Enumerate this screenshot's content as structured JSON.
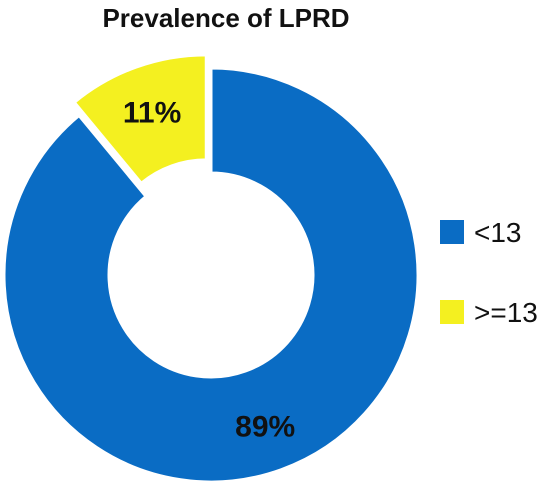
{
  "chart_data": {
    "type": "pie",
    "title": "Prevalence of LPRD",
    "donut": true,
    "categories": [
      "<13",
      ">=13"
    ],
    "values": [
      89,
      11
    ],
    "labels": [
      "89%",
      "11%"
    ],
    "colors": [
      "#0a6cc4",
      "#f4f020"
    ],
    "exploded": [
      false,
      true
    ],
    "legend": {
      "placement": "right",
      "entries": [
        "<13",
        ">=13"
      ]
    }
  }
}
